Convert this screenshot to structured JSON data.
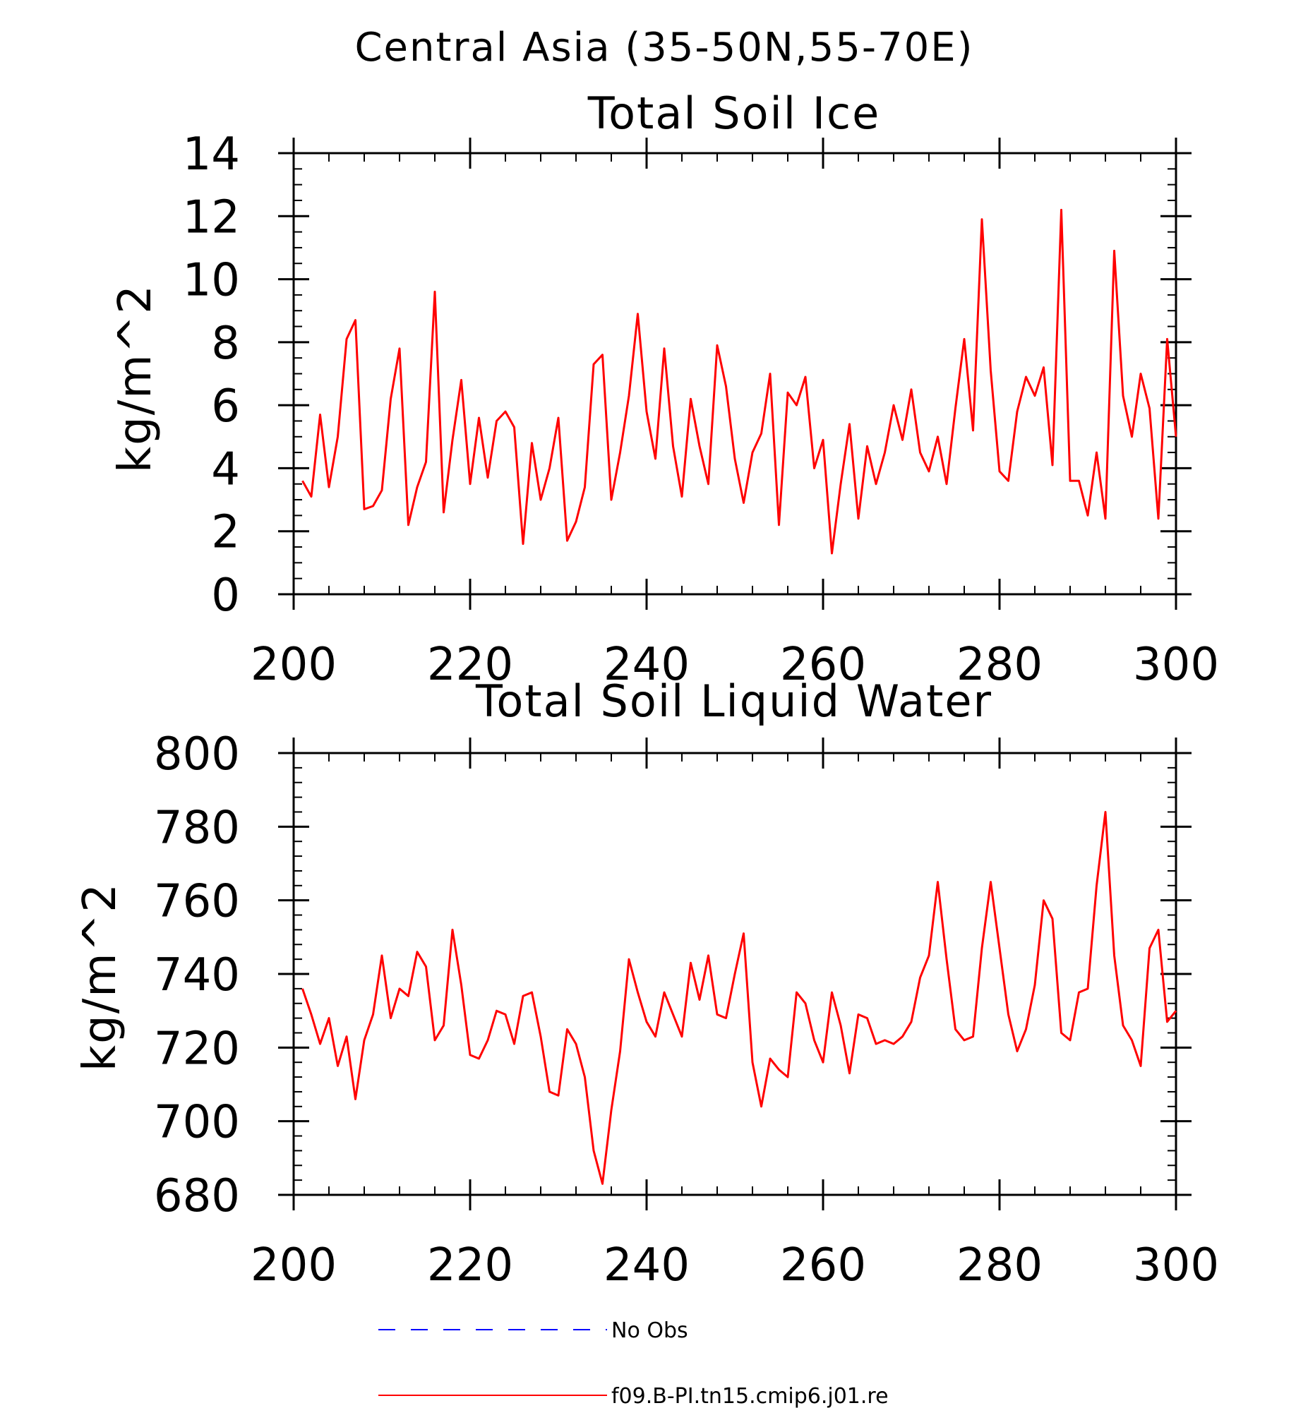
{
  "figure": {
    "title": "Central Asia (35-50N,55-70E)"
  },
  "colors": {
    "model_line": "#ff0000",
    "obs_line": "#0000ff",
    "axes": "#000000",
    "background": "#ffffff"
  },
  "legend": {
    "position": "bottom",
    "items": [
      {
        "label": "No Obs",
        "style": "dashed",
        "color": "#0000ff"
      },
      {
        "label": "f09.B-PI.tn15.cmip6.j01.re",
        "style": "solid",
        "color": "#ff0000"
      }
    ]
  },
  "chart_data": [
    {
      "type": "line",
      "title": "Total Soil Ice",
      "xlabel": "",
      "ylabel": "kg/m^2",
      "xlim": [
        200,
        300
      ],
      "ylim": [
        0,
        14
      ],
      "xticks": [
        200,
        220,
        240,
        260,
        280,
        300
      ],
      "yticks": [
        0,
        2,
        4,
        6,
        8,
        10,
        12,
        14
      ],
      "y_minor_step": 0.5,
      "x_minor_step": 4,
      "grid": false,
      "series": [
        {
          "name": "f09.B-PI.tn15.cmip6.j01.re",
          "color": "#ff0000",
          "x_start": 201,
          "x_step": 1,
          "values": [
            3.6,
            3.1,
            5.7,
            3.4,
            5.0,
            8.1,
            8.7,
            2.7,
            2.8,
            3.3,
            6.2,
            7.8,
            2.2,
            3.4,
            4.2,
            9.6,
            2.6,
            4.9,
            6.8,
            3.5,
            5.6,
            3.7,
            5.5,
            5.8,
            5.3,
            1.6,
            4.8,
            3.0,
            4.0,
            5.6,
            1.7,
            2.3,
            3.4,
            7.3,
            7.6,
            3.0,
            4.5,
            6.3,
            8.9,
            5.8,
            4.3,
            7.8,
            4.7,
            3.1,
            6.2,
            4.7,
            3.5,
            7.9,
            6.6,
            4.3,
            2.9,
            4.5,
            5.1,
            7.0,
            2.2,
            6.4,
            6.0,
            6.9,
            4.0,
            4.9,
            1.3,
            3.5,
            5.4,
            2.4,
            4.7,
            3.5,
            4.5,
            6.0,
            4.9,
            6.5,
            4.5,
            3.9,
            5.0,
            3.5,
            5.9,
            8.1,
            5.2,
            11.9,
            7.1,
            3.9,
            3.6,
            5.8,
            6.9,
            6.3,
            7.2,
            4.1,
            12.2,
            3.6,
            3.6,
            2.5,
            4.5,
            2.4,
            10.9,
            6.3,
            5.0,
            7.0,
            5.9,
            2.4,
            8.1,
            5.0
          ]
        }
      ]
    },
    {
      "type": "line",
      "title": "Total Soil Liquid Water",
      "xlabel": "",
      "ylabel": "kg/m^2",
      "xlim": [
        200,
        300
      ],
      "ylim": [
        680,
        800
      ],
      "xticks": [
        200,
        220,
        240,
        260,
        280,
        300
      ],
      "yticks": [
        680,
        700,
        720,
        740,
        760,
        780,
        800
      ],
      "y_minor_step": 4,
      "x_minor_step": 4,
      "grid": false,
      "series": [
        {
          "name": "f09.B-PI.tn15.cmip6.j01.re",
          "color": "#ff0000",
          "x_start": 201,
          "x_step": 1,
          "values": [
            736,
            729,
            721,
            728,
            715,
            723,
            706,
            722,
            729,
            745,
            728,
            736,
            734,
            746,
            742,
            722,
            726,
            752,
            737,
            718,
            717,
            722,
            730,
            729,
            721,
            734,
            735,
            723,
            708,
            707,
            725,
            721,
            712,
            692,
            683,
            703,
            719,
            744,
            735,
            727,
            723,
            735,
            729,
            723,
            743,
            733,
            745,
            729,
            728,
            740,
            751,
            716,
            704,
            717,
            714,
            712,
            735,
            732,
            722,
            716,
            735,
            726,
            713,
            729,
            728,
            721,
            722,
            721,
            723,
            727,
            739,
            745,
            765,
            744,
            725,
            722,
            723,
            747,
            765,
            747,
            729,
            719,
            725,
            737,
            760,
            755,
            724,
            722,
            735,
            736,
            764,
            784,
            745,
            726,
            722,
            715,
            747,
            752,
            727,
            730
          ]
        }
      ]
    }
  ]
}
